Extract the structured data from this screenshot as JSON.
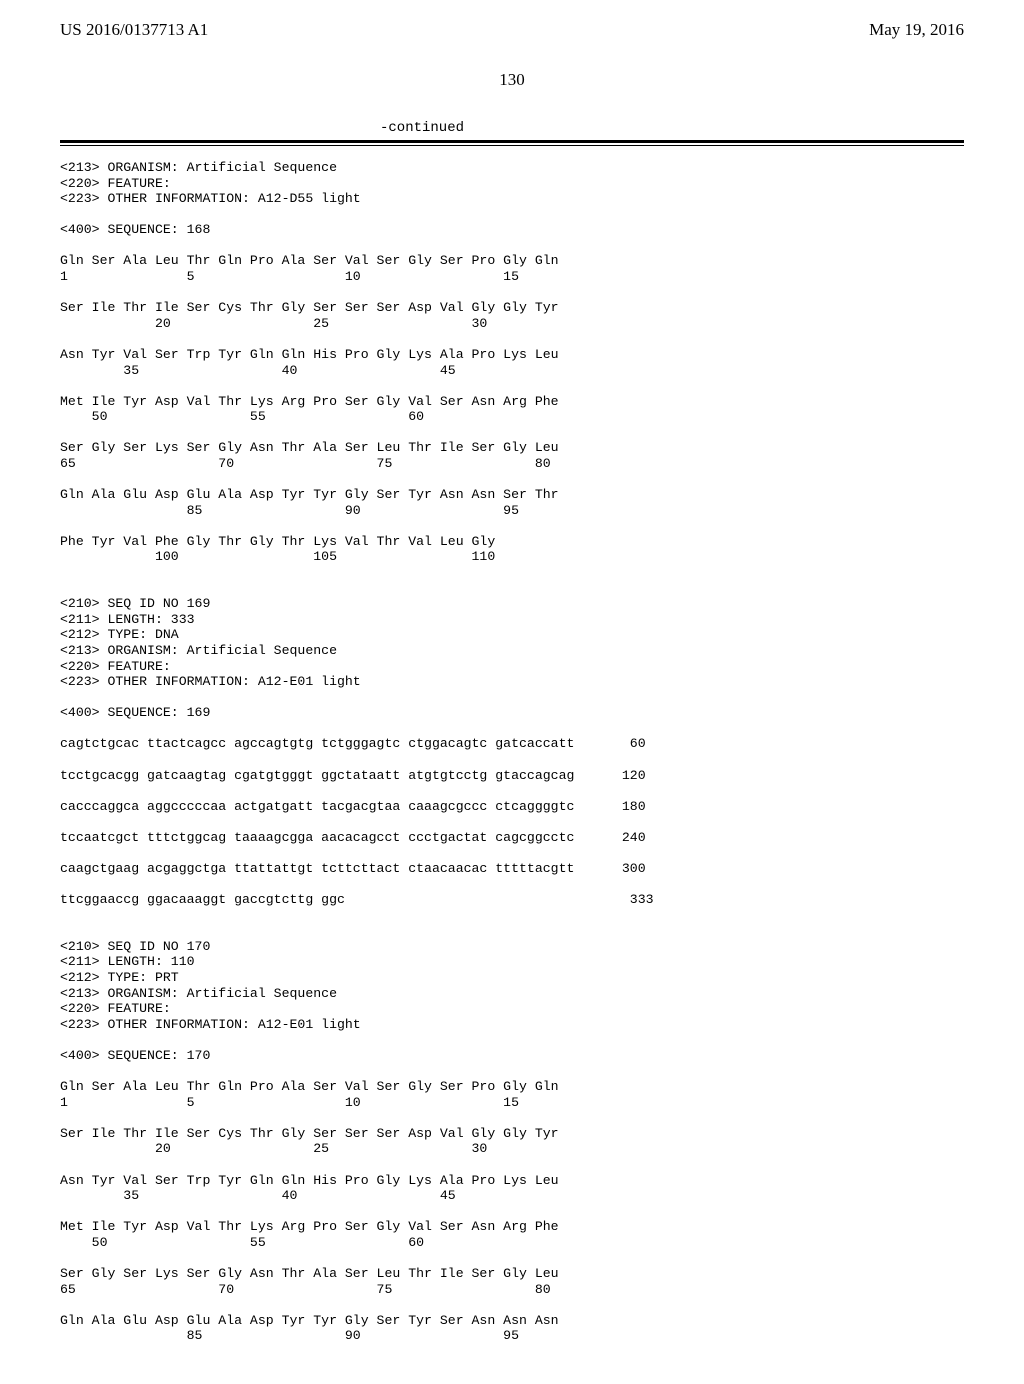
{
  "header": {
    "left": "US 2016/0137713 A1",
    "right": "May 19, 2016"
  },
  "page_number": "130",
  "continued": "-continued",
  "seq_block_1": {
    "l1": "<213> ORGANISM: Artificial Sequence",
    "l2": "<220> FEATURE:",
    "l3": "<223> OTHER INFORMATION: A12-D55 light",
    "blank1": "",
    "l4": "<400> SEQUENCE: 168",
    "blank2": "",
    "r1a": "Gln Ser Ala Leu Thr Gln Pro Ala Ser Val Ser Gly Ser Pro Gly Gln",
    "r1b": "1               5                   10                  15",
    "blank3": "",
    "r2a": "Ser Ile Thr Ile Ser Cys Thr Gly Ser Ser Ser Asp Val Gly Gly Tyr",
    "r2b": "            20                  25                  30",
    "blank4": "",
    "r3a": "Asn Tyr Val Ser Trp Tyr Gln Gln His Pro Gly Lys Ala Pro Lys Leu",
    "r3b": "        35                  40                  45",
    "blank5": "",
    "r4a": "Met Ile Tyr Asp Val Thr Lys Arg Pro Ser Gly Val Ser Asn Arg Phe",
    "r4b": "    50                  55                  60",
    "blank6": "",
    "r5a": "Ser Gly Ser Lys Ser Gly Asn Thr Ala Ser Leu Thr Ile Ser Gly Leu",
    "r5b": "65                  70                  75                  80",
    "blank7": "",
    "r6a": "Gln Ala Glu Asp Glu Ala Asp Tyr Tyr Gly Ser Tyr Asn Asn Ser Thr",
    "r6b": "                85                  90                  95",
    "blank8": "",
    "r7a": "Phe Tyr Val Phe Gly Thr Gly Thr Lys Val Thr Val Leu Gly",
    "r7b": "            100                 105                 110"
  },
  "seq_block_2": {
    "blank0": "",
    "blank00": "",
    "l1": "<210> SEQ ID NO 169",
    "l2": "<211> LENGTH: 333",
    "l3": "<212> TYPE: DNA",
    "l4": "<213> ORGANISM: Artificial Sequence",
    "l5": "<220> FEATURE:",
    "l6": "<223> OTHER INFORMATION: A12-E01 light",
    "blank1": "",
    "l7": "<400> SEQUENCE: 169",
    "blank2": "",
    "d1": "cagtctgcac ttactcagcc agccagtgtg tctgggagtc ctggacagtc gatcaccatt       60",
    "blank3": "",
    "d2": "tcctgcacgg gatcaagtag cgatgtgggt ggctataatt atgtgtcctg gtaccagcag      120",
    "blank4": "",
    "d3": "cacccaggca aggcccccaa actgatgatt tacgacgtaa caaagcgccc ctcaggggtc      180",
    "blank5": "",
    "d4": "tccaatcgct tttctggcag taaaagcgga aacacagcct ccctgactat cagcggcctc      240",
    "blank6": "",
    "d5": "caagctgaag acgaggctga ttattattgt tcttcttact ctaacaacac tttttacgtt      300",
    "blank7": "",
    "d6": "ttcggaaccg ggacaaaggt gaccgtcttg ggc                                    333"
  },
  "seq_block_3": {
    "blank0": "",
    "blank00": "",
    "l1": "<210> SEQ ID NO 170",
    "l2": "<211> LENGTH: 110",
    "l3": "<212> TYPE: PRT",
    "l4": "<213> ORGANISM: Artificial Sequence",
    "l5": "<220> FEATURE:",
    "l6": "<223> OTHER INFORMATION: A12-E01 light",
    "blank1": "",
    "l7": "<400> SEQUENCE: 170",
    "blank2": "",
    "r1a": "Gln Ser Ala Leu Thr Gln Pro Ala Ser Val Ser Gly Ser Pro Gly Gln",
    "r1b": "1               5                   10                  15",
    "blank3": "",
    "r2a": "Ser Ile Thr Ile Ser Cys Thr Gly Ser Ser Ser Asp Val Gly Gly Tyr",
    "r2b": "            20                  25                  30",
    "blank4": "",
    "r3a": "Asn Tyr Val Ser Trp Tyr Gln Gln His Pro Gly Lys Ala Pro Lys Leu",
    "r3b": "        35                  40                  45",
    "blank5": "",
    "r4a": "Met Ile Tyr Asp Val Thr Lys Arg Pro Ser Gly Val Ser Asn Arg Phe",
    "r4b": "    50                  55                  60",
    "blank6": "",
    "r5a": "Ser Gly Ser Lys Ser Gly Asn Thr Ala Ser Leu Thr Ile Ser Gly Leu",
    "r5b": "65                  70                  75                  80",
    "blank7": "",
    "r6a": "Gln Ala Glu Asp Glu Ala Asp Tyr Tyr Gly Ser Tyr Ser Asn Asn Asn",
    "r6b": "                85                  90                  95"
  }
}
